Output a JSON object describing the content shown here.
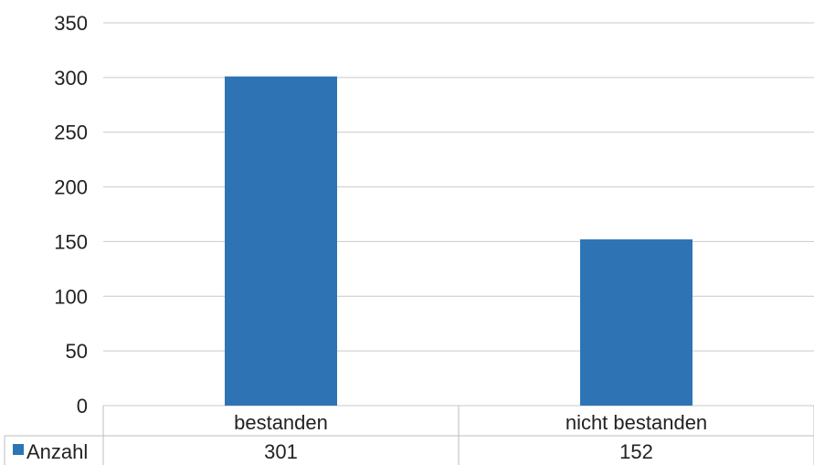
{
  "chart_data": {
    "type": "bar",
    "categories": [
      "bestanden",
      "nicht bestanden"
    ],
    "series": [
      {
        "name": "Anzahl",
        "values": [
          301,
          152
        ]
      }
    ],
    "data_table_values": [
      "301",
      "152"
    ],
    "yticks": [
      "0",
      "50",
      "100",
      "150",
      "200",
      "250",
      "300",
      "350"
    ],
    "ylim": [
      0,
      350
    ],
    "grid": true,
    "legend": "bottom-left (in data table)",
    "colors": {
      "bar": "#2e74b5"
    }
  }
}
